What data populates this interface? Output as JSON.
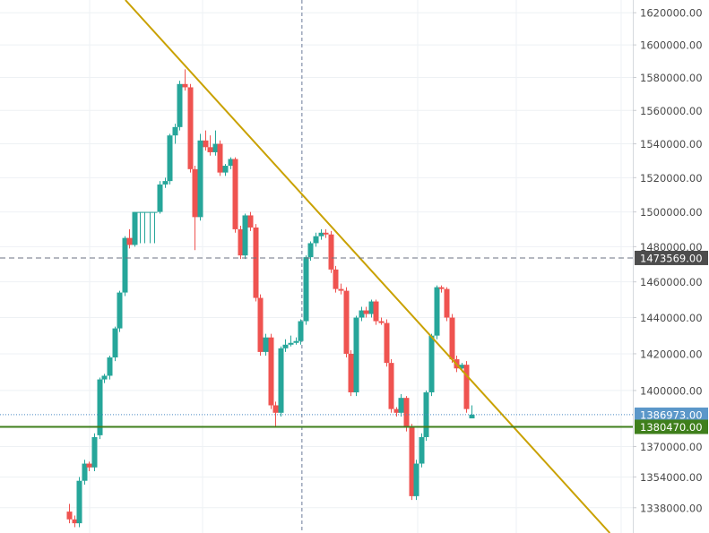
{
  "chart_data": {
    "type": "candlestick",
    "y_scale": "log",
    "ylim": [
      1325000,
      1628000
    ],
    "yticks": [
      {
        "value": 1338000,
        "label": "1338000.00"
      },
      {
        "value": 1354000,
        "label": "1354000.00"
      },
      {
        "value": 1370000,
        "label": "1370000.00"
      },
      {
        "value": 1400000,
        "label": "1400000.00"
      },
      {
        "value": 1420000,
        "label": "1420000.00"
      },
      {
        "value": 1440000,
        "label": "1440000.00"
      },
      {
        "value": 1460000,
        "label": "1460000.00"
      },
      {
        "value": 1480000,
        "label": "1480000.00"
      },
      {
        "value": 1500000,
        "label": "1500000.00"
      },
      {
        "value": 1520000,
        "label": "1520000.00"
      },
      {
        "value": 1540000,
        "label": "1540000.00"
      },
      {
        "value": 1560000,
        "label": "1560000.00"
      },
      {
        "value": 1580000,
        "label": "1580000.00"
      },
      {
        "value": 1600000,
        "label": "1600000.00"
      },
      {
        "value": 1620000,
        "label": "1620000.00"
      }
    ],
    "grid": true,
    "up_color": "#26a69a",
    "down_color": "#ef5350",
    "open": [
      1336000,
      1332000,
      1330000,
      1352000,
      1361000,
      1359000,
      1376000,
      1406000,
      1408000,
      1418000,
      1434000,
      1454000,
      1485000,
      1481000,
      1500000,
      1500000,
      1500000,
      1500000,
      1500000,
      1516000,
      1518000,
      1545000,
      1550000,
      1576000,
      1574000,
      1525000,
      1497000,
      1542000,
      1538000,
      1535000,
      1540000,
      1523000,
      1527000,
      1531000,
      1490000,
      1475000,
      1498000,
      1491000,
      1451000,
      1421000,
      1429000,
      1392000,
      1388000,
      1423000,
      1425000,
      1426000,
      1427000,
      1438000,
      1474000,
      1482000,
      1486000,
      1488000,
      1487000,
      1467000,
      1456000,
      1455000,
      1420000,
      1399000,
      1440000,
      1444000,
      1442000,
      1449000,
      1438000,
      1437000,
      1415000,
      1390000,
      1388000,
      1396000,
      1380000,
      1344000,
      1361000,
      1375000,
      1399000,
      1430000,
      1457000,
      1456000,
      1440000,
      1417000,
      1412000,
      1414000,
      1385000
    ],
    "high": [
      1340000,
      1334000,
      1354000,
      1363000,
      1362000,
      1377000,
      1407000,
      1409000,
      1419000,
      1435000,
      1455000,
      1486000,
      1490000,
      1500000,
      1500000,
      1500000,
      1500000,
      1500000,
      1518000,
      1520000,
      1546000,
      1552000,
      1578000,
      1585000,
      1576000,
      1527000,
      1546000,
      1548000,
      1545000,
      1548000,
      1542000,
      1528000,
      1532000,
      1532000,
      1492000,
      1499000,
      1500000,
      1493000,
      1453000,
      1431000,
      1431000,
      1394000,
      1424000,
      1428000,
      1430000,
      1429000,
      1439000,
      1475000,
      1483000,
      1488000,
      1490000,
      1490000,
      1489000,
      1469000,
      1459000,
      1457000,
      1422000,
      1441000,
      1446000,
      1446000,
      1450000,
      1450000,
      1440000,
      1439000,
      1417000,
      1391000,
      1398000,
      1397000,
      1382000,
      1363000,
      1377000,
      1400000,
      1431000,
      1458000,
      1458000,
      1457000,
      1442000,
      1419000,
      1415000,
      1416000,
      1392000
    ],
    "low": [
      1330000,
      1328000,
      1328000,
      1350000,
      1357000,
      1357000,
      1374000,
      1404000,
      1406000,
      1416000,
      1432000,
      1452000,
      1479000,
      1480000,
      1482000,
      1482000,
      1482000,
      1482000,
      1499000,
      1514000,
      1516000,
      1540000,
      1548000,
      1572000,
      1523000,
      1478000,
      1495000,
      1536000,
      1533000,
      1533000,
      1521000,
      1521000,
      1525000,
      1488000,
      1473000,
      1473000,
      1489000,
      1449000,
      1419000,
      1419000,
      1390000,
      1380000,
      1386000,
      1421000,
      1424000,
      1425000,
      1425000,
      1436000,
      1472000,
      1480000,
      1484000,
      1485000,
      1465000,
      1454000,
      1453000,
      1418000,
      1397000,
      1397000,
      1438000,
      1440000,
      1440000,
      1436000,
      1436000,
      1413000,
      1388000,
      1386000,
      1386000,
      1378000,
      1342000,
      1342000,
      1359000,
      1373000,
      1397000,
      1428000,
      1454000,
      1438000,
      1415000,
      1410000,
      1410000,
      1388000,
      1385000
    ],
    "close": [
      1332000,
      1330000,
      1352000,
      1361000,
      1359000,
      1375000,
      1406000,
      1408000,
      1418000,
      1434000,
      1454000,
      1485000,
      1481000,
      1500000,
      1500000,
      1500000,
      1500000,
      1500000,
      1516000,
      1518000,
      1545000,
      1550000,
      1576000,
      1574000,
      1525000,
      1497000,
      1542000,
      1538000,
      1535000,
      1540000,
      1523000,
      1527000,
      1531000,
      1490000,
      1475000,
      1498000,
      1491000,
      1451000,
      1421000,
      1429000,
      1392000,
      1388000,
      1423000,
      1425000,
      1426000,
      1427000,
      1438000,
      1474000,
      1482000,
      1486000,
      1488000,
      1487000,
      1467000,
      1456000,
      1455000,
      1420000,
      1399000,
      1440000,
      1444000,
      1442000,
      1449000,
      1438000,
      1437000,
      1415000,
      1390000,
      1388000,
      1396000,
      1380000,
      1344000,
      1361000,
      1375000,
      1399000,
      1430000,
      1457000,
      1456000,
      1440000,
      1417000,
      1412000,
      1414000,
      1390000,
      1387000
    ],
    "price_lines": [
      {
        "value": 1473569,
        "label": "1473569.00",
        "style": "dashed",
        "color": "#6b7280",
        "label_bg": "#4d4d4d"
      },
      {
        "value": 1386973,
        "label": "1386973.00",
        "style": "dotted",
        "color": "#4a8ac4",
        "label_bg": "#5b97c9"
      },
      {
        "value": 1380470,
        "label": "1380470.00",
        "style": "solid",
        "color": "#3f7f1c",
        "label_bg": "#3f7f1c"
      }
    ],
    "trend_line": {
      "color": "#c9a100",
      "points": [
        [
          11.2,
          1628000
        ],
        [
          107.5,
          1325000
        ]
      ]
    },
    "crosshair_index": 46.3
  }
}
